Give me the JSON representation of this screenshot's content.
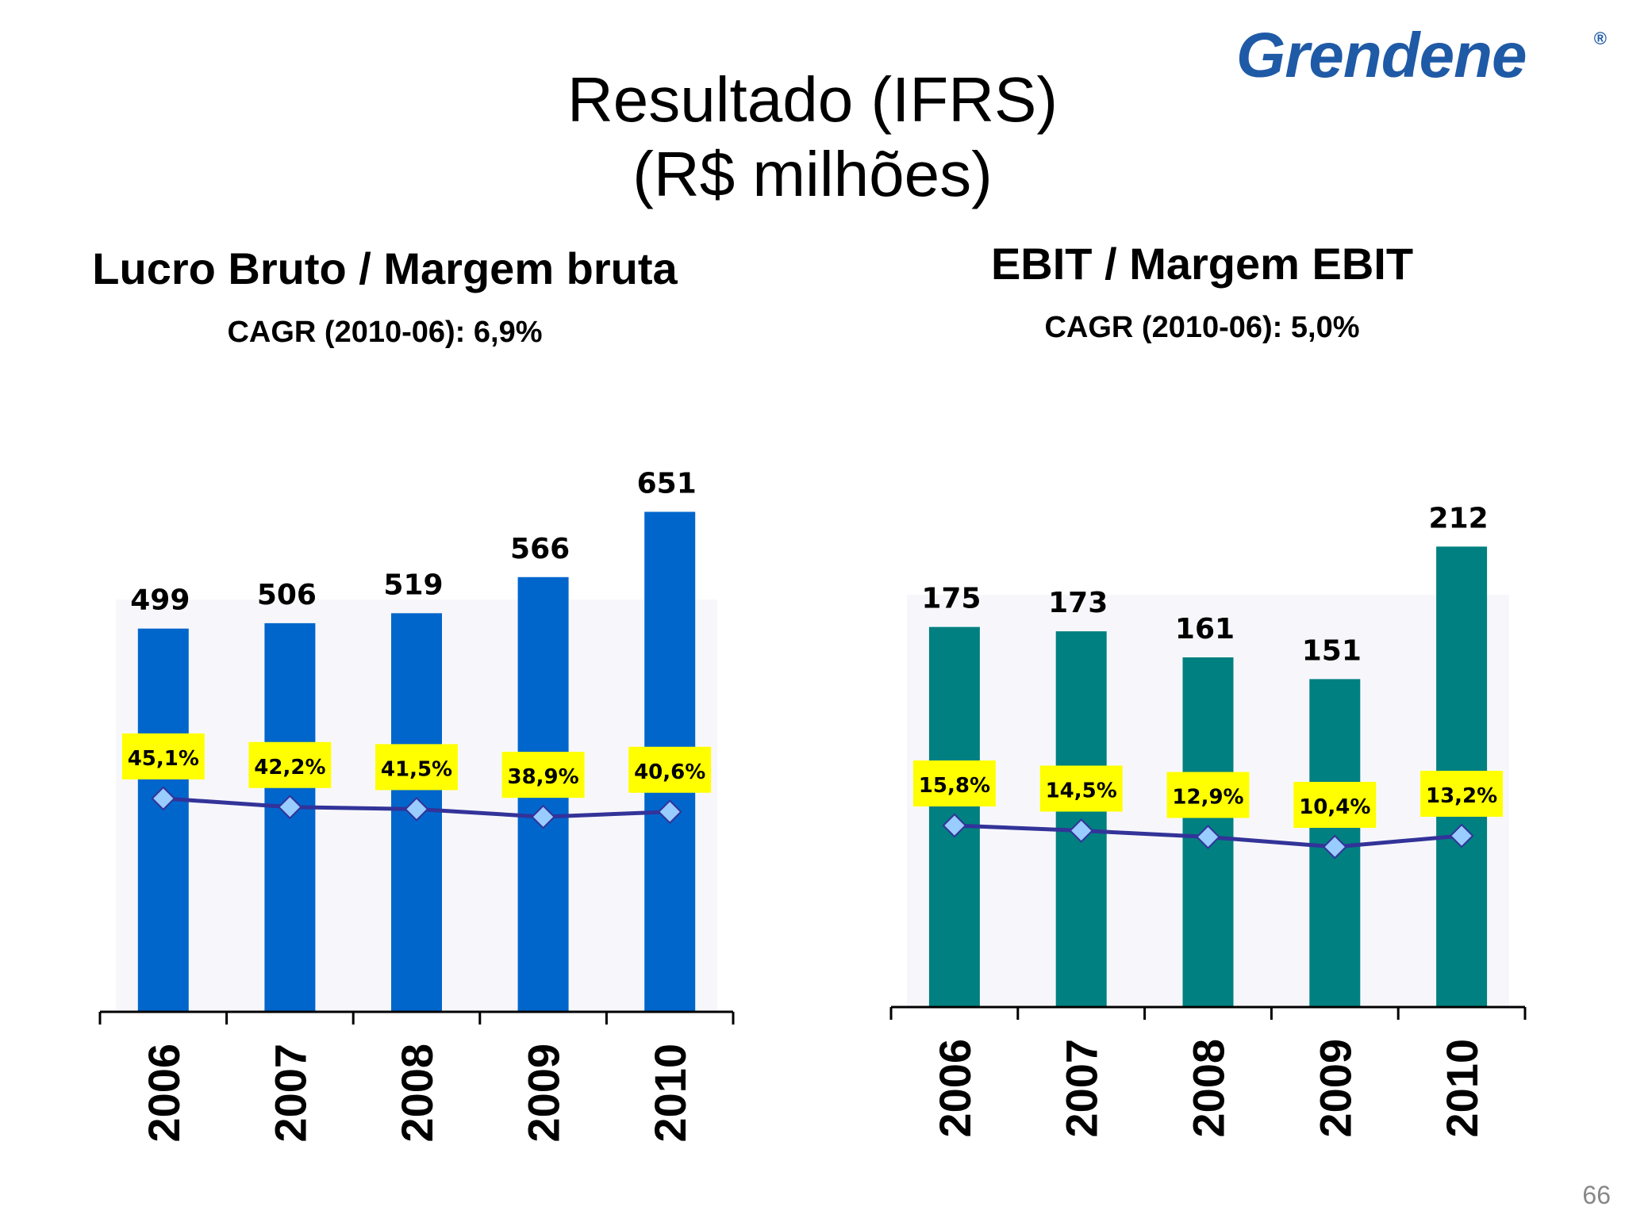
{
  "logo": {
    "text": "Grendene",
    "mark": "®",
    "color": "#1f5aa6"
  },
  "title_line1": "Resultado (IFRS)",
  "title_line2": "(R$ milhões)",
  "page_number": "66",
  "chart_data": [
    {
      "type": "bar",
      "title": "Lucro Bruto / Margem bruta",
      "subtitle": "CAGR (2010-06): 6,9%",
      "categories": [
        "2006",
        "2007",
        "2008",
        "2009",
        "2010"
      ],
      "series": [
        {
          "values": [
            499,
            506,
            519,
            566,
            651
          ],
          "labels": [
            "499",
            "506",
            "519",
            "566",
            "651"
          ],
          "color": "#0066cc"
        },
        {
          "type": "line",
          "values": [
            45.1,
            42.2,
            41.5,
            38.9,
            40.6
          ],
          "labels": [
            "45,1%",
            "42,2%",
            "41,5%",
            "38,9%",
            "40,6%"
          ],
          "color": "#333399"
        }
      ],
      "label_bg": "#ffff00",
      "marker_color": "#99ccff",
      "ylim": [
        0,
        700
      ],
      "margin_ylim": [
        0,
        80
      ],
      "grid": false
    },
    {
      "type": "bar",
      "title": "EBIT / Margem EBIT",
      "subtitle": "CAGR (2010-06): 5,0%",
      "categories": [
        "2006",
        "2007",
        "2008",
        "2009",
        "2010"
      ],
      "series": [
        {
          "values": [
            175,
            173,
            161,
            151,
            212
          ],
          "labels": [
            "175",
            "173",
            "161",
            "151",
            "212"
          ],
          "color": "#008080"
        },
        {
          "type": "line",
          "values": [
            15.8,
            14.5,
            12.9,
            10.4,
            13.2
          ],
          "labels": [
            "15,8%",
            "14,5%",
            "12,9%",
            "10,4%",
            "13,2%"
          ],
          "color": "#333399"
        }
      ],
      "label_bg": "#ffff00",
      "marker_color": "#99ccff",
      "ylim": [
        0,
        230
      ],
      "margin_ylim": [
        -20,
        40
      ],
      "grid": false
    }
  ]
}
